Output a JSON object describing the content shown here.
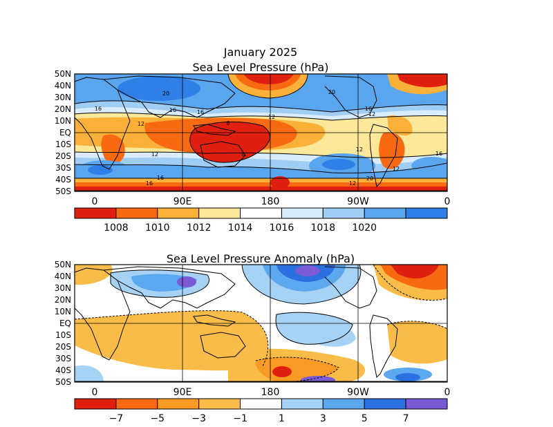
{
  "title": "January 2025",
  "colors": {
    "pressure": [
      "#e0200f",
      "#f76a12",
      "#f9b13a",
      "#fde89a",
      "#ffffff",
      "#d8ecfb",
      "#9fcdf4",
      "#5aa6ee",
      "#2f7fe7"
    ],
    "anomaly": [
      "#e0200f",
      "#f76a12",
      "#f99a25",
      "#f9bc48",
      "#ffffff",
      "#a6d2f5",
      "#5ca8ee",
      "#2b6fe0",
      "#7a5bd6"
    ],
    "land_outline": "#000000"
  },
  "panels": [
    {
      "id": "slp",
      "subtitle": "Sea Level Pressure (hPa)",
      "lat_labels": [
        "50N",
        "40N",
        "30N",
        "20N",
        "10N",
        "EQ",
        "10S",
        "20S",
        "30S",
        "40S",
        "50S"
      ],
      "lon_labels": [
        "0",
        "90E",
        "180",
        "90W",
        "0"
      ],
      "contour_labels": [
        "16",
        "20",
        "16",
        "20",
        "16",
        "12",
        "8",
        "12",
        "16",
        "12",
        "8",
        "12",
        "16",
        "12",
        "16",
        "20",
        "12",
        "16",
        "12"
      ],
      "colorbar_labels": [
        "1008",
        "1010",
        "1012",
        "1014",
        "1016",
        "1018",
        "1020"
      ]
    },
    {
      "id": "anom",
      "subtitle": "Sea Level Pressure Anomaly (hPa)",
      "lat_labels": [
        "50N",
        "40N",
        "30N",
        "20N",
        "10N",
        "EQ",
        "10S",
        "20S",
        "30S",
        "40S",
        "50S"
      ],
      "lon_labels": [
        "0",
        "90E",
        "180",
        "90W",
        "0"
      ],
      "colorbar_labels": [
        "−7",
        "−5",
        "−3",
        "−1",
        "1",
        "3",
        "5",
        "7"
      ]
    }
  ]
}
